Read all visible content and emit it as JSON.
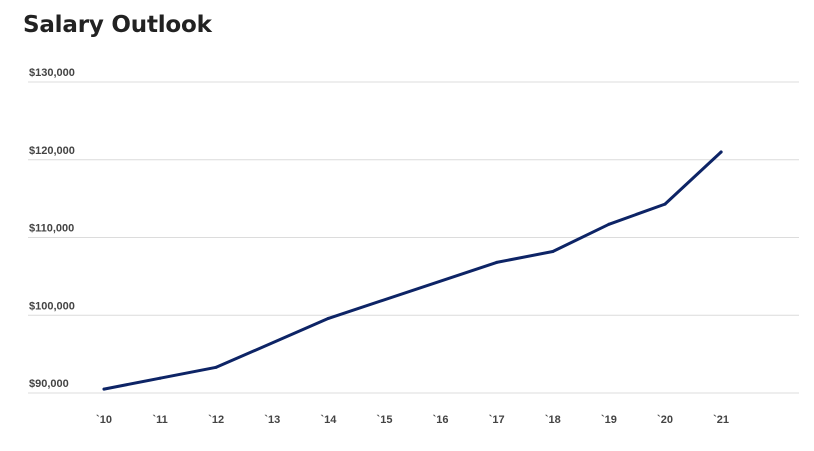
{
  "chart_data": {
    "type": "line",
    "title": "Salary Outlook",
    "xlabel": "",
    "ylabel": "",
    "categories": [
      "`10",
      "`11",
      "`12",
      "`13",
      "`14",
      "`15",
      "`16",
      "`17",
      "`18",
      "`19",
      "`20",
      "`21"
    ],
    "y_ticks": [
      {
        "value": 90000,
        "label": "$90,000"
      },
      {
        "value": 100000,
        "label": "$100,000"
      },
      {
        "value": 110000,
        "label": "$110,000"
      },
      {
        "value": 120000,
        "label": "$120,000"
      },
      {
        "value": 130000,
        "label": "$130,000"
      }
    ],
    "ylim": [
      90000,
      130000
    ],
    "grid": true,
    "series": [
      {
        "color": "#0d2466",
        "x": [
          "`10",
          "`11",
          "`12",
          "`14",
          "`17",
          "`18",
          "`19",
          "`20",
          "`21"
        ],
        "values": [
          90500,
          91900,
          93300,
          99600,
          106800,
          108200,
          111700,
          114300,
          121000
        ]
      }
    ]
  }
}
